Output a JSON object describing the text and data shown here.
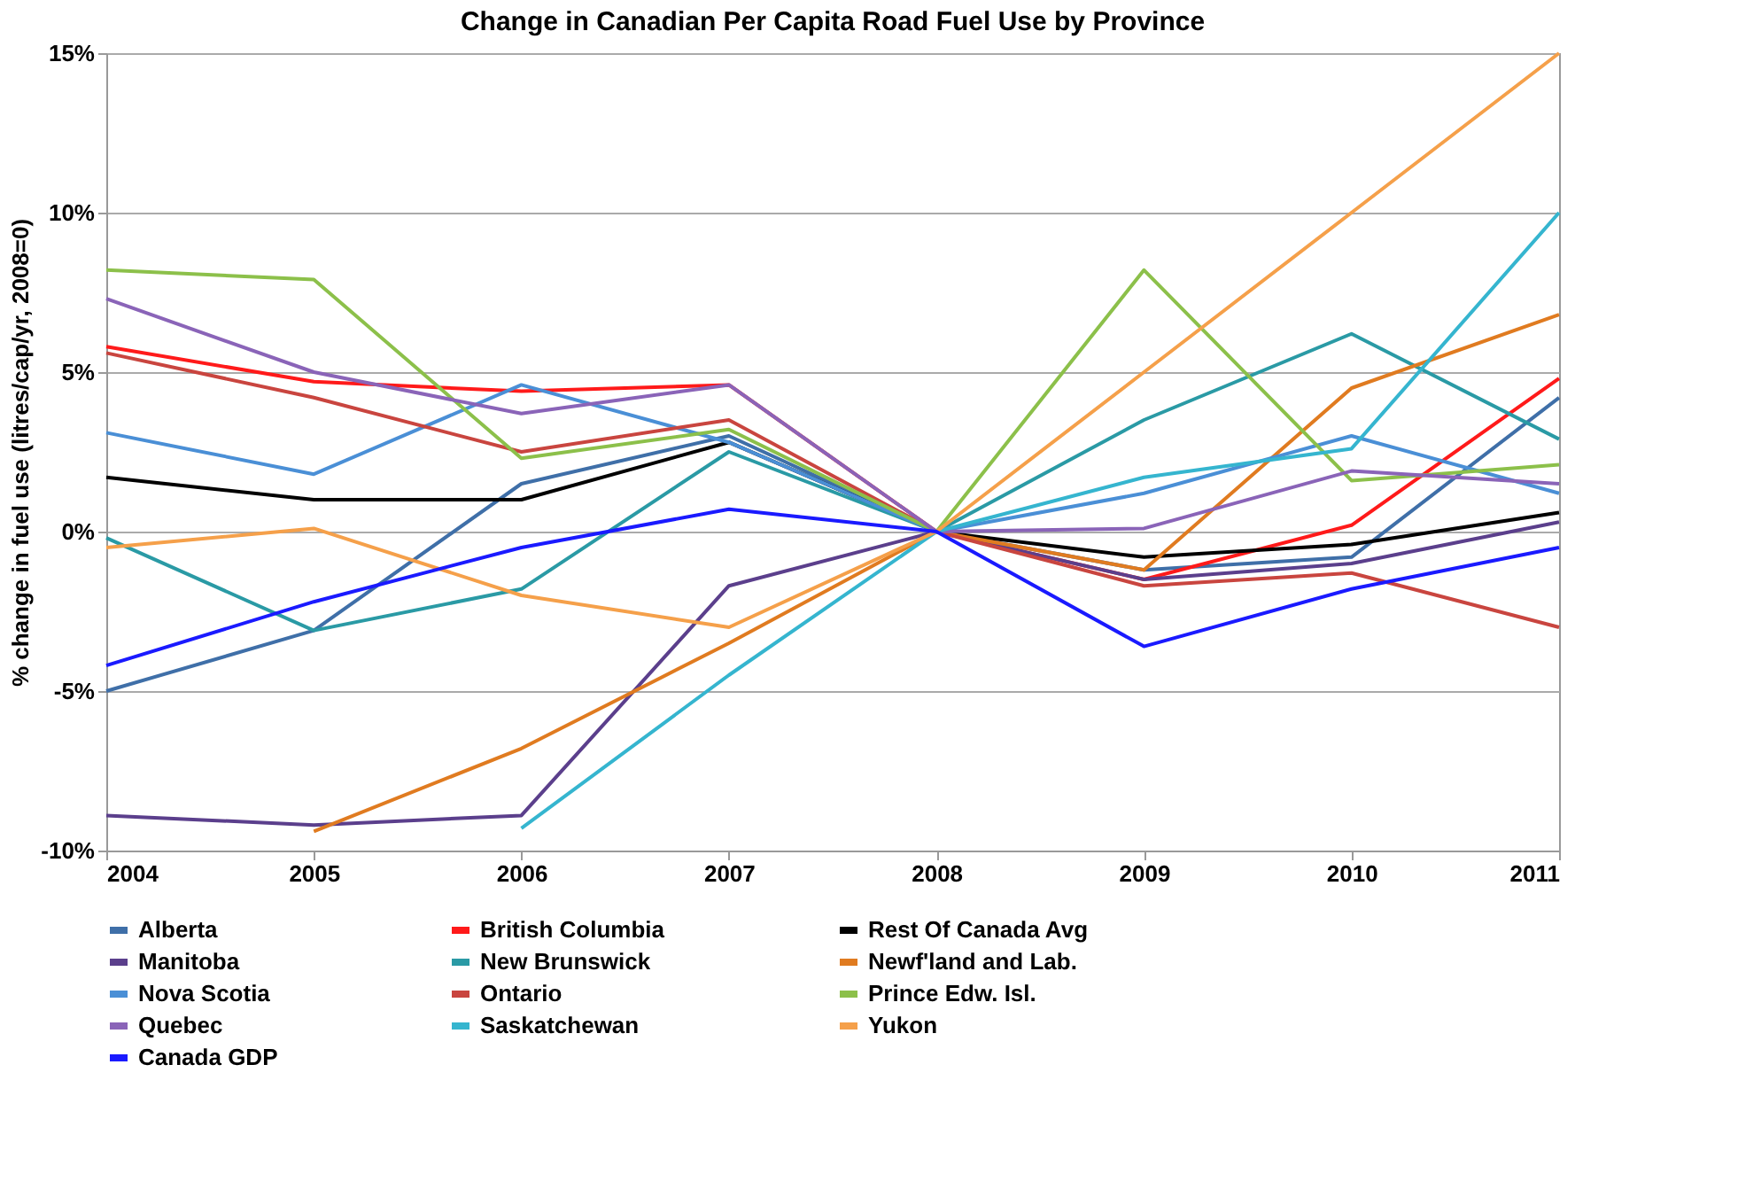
{
  "chart_data": {
    "type": "line",
    "title": "Change in Canadian Per Capita Road Fuel Use by Province",
    "ylabel": "% change in fuel use (litres/cap/yr, 2008=0)",
    "categories": [
      "2004",
      "2005",
      "2006",
      "2007",
      "2008",
      "2009",
      "2010",
      "2011"
    ],
    "series": [
      {
        "name": "Alberta",
        "color": "#3f6fa8",
        "values": [
          -5.0,
          -3.1,
          1.5,
          3.0,
          0,
          -1.2,
          -0.8,
          4.2
        ]
      },
      {
        "name": "British Columbia",
        "color": "#ff1a1a",
        "values": [
          5.8,
          4.7,
          4.4,
          4.6,
          0,
          -1.5,
          0.2,
          4.8
        ]
      },
      {
        "name": "Rest Of Canada Avg",
        "color": "#000000",
        "values": [
          1.7,
          1.0,
          1.0,
          2.8,
          0,
          -0.8,
          -0.4,
          0.6
        ]
      },
      {
        "name": "Manitoba",
        "color": "#5b3f8c",
        "values": [
          -8.9,
          -9.2,
          -8.9,
          -1.7,
          0,
          -1.5,
          -1.0,
          0.3
        ]
      },
      {
        "name": "New Brunswick",
        "color": "#2a9aa5",
        "values": [
          -0.2,
          -3.1,
          -1.8,
          2.5,
          0,
          3.5,
          6.2,
          2.9
        ]
      },
      {
        "name": "Newf'land and Lab.",
        "color": "#e07b20",
        "values": [
          null,
          -9.4,
          -6.8,
          -3.5,
          0,
          -1.2,
          4.5,
          6.8
        ]
      },
      {
        "name": "Nova Scotia",
        "color": "#4a8fd6",
        "values": [
          3.1,
          1.8,
          4.6,
          2.8,
          0,
          1.2,
          3.0,
          1.2
        ]
      },
      {
        "name": "Ontario",
        "color": "#c9453f",
        "values": [
          5.6,
          4.2,
          2.5,
          3.5,
          0,
          -1.7,
          -1.3,
          -3.0
        ]
      },
      {
        "name": "Prince Edw. Isl.",
        "color": "#8cc04a",
        "values": [
          8.2,
          7.9,
          2.3,
          3.2,
          0,
          8.2,
          1.6,
          2.1
        ]
      },
      {
        "name": "Quebec",
        "color": "#8a64b8",
        "values": [
          7.3,
          5.0,
          3.7,
          4.6,
          0,
          0.1,
          1.9,
          1.5
        ]
      },
      {
        "name": "Saskatchewan",
        "color": "#35b5cf",
        "values": [
          null,
          null,
          -9.3,
          -4.5,
          0,
          1.7,
          2.6,
          10.0
        ]
      },
      {
        "name": "Yukon",
        "color": "#f5a04a",
        "values": [
          -0.5,
          0.1,
          -2.0,
          -3.0,
          0,
          5.0,
          10.0,
          15.0
        ]
      },
      {
        "name": "Canada GDP",
        "color": "#1a1aff",
        "values": [
          -4.2,
          -2.2,
          -0.5,
          0.7,
          0,
          -3.6,
          -1.8,
          -0.5
        ]
      }
    ],
    "ylim": [
      -10,
      15
    ],
    "yticks": [
      {
        "value": -10,
        "label": "-10%"
      },
      {
        "value": -5,
        "label": "-5%"
      },
      {
        "value": 0,
        "label": "0%"
      },
      {
        "value": 5,
        "label": "5%"
      },
      {
        "value": 10,
        "label": "10%"
      },
      {
        "value": 15,
        "label": "15%"
      }
    ],
    "grid": "y",
    "legend": "bottom",
    "marker": "none",
    "line_style": "solid"
  }
}
